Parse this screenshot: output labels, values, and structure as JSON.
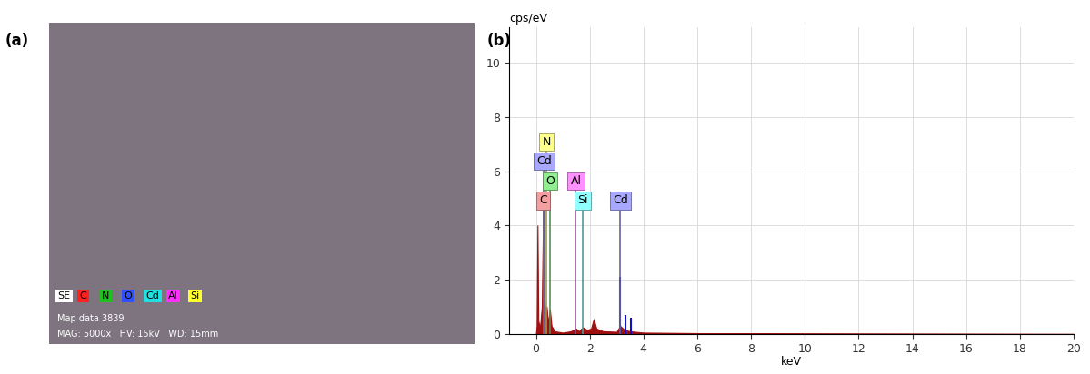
{
  "map_image": {
    "label": "(a)",
    "legend": [
      {
        "name": "SE",
        "color": "#ffffff"
      },
      {
        "name": "C",
        "color": "#ff2020"
      },
      {
        "name": "N",
        "color": "#20c020"
      },
      {
        "name": "O",
        "color": "#3050ff"
      },
      {
        "name": "Cd",
        "color": "#20e0e0"
      },
      {
        "name": "Al",
        "color": "#ff30ff"
      },
      {
        "name": "Si",
        "color": "#ffff30"
      }
    ],
    "info": [
      "Map data 3839",
      "MAG: 5000x   HV: 15kV   WD: 15mm"
    ]
  },
  "chart_data": {
    "type": "area",
    "label": "(b)",
    "y_label": "cps/eV",
    "x_label": "keV",
    "x": [
      0.0,
      0.03,
      0.06,
      0.09,
      0.15,
      0.22,
      0.27,
      0.32,
      0.37,
      0.4,
      0.45,
      0.52,
      0.58,
      0.7,
      1.0,
      1.3,
      1.49,
      1.6,
      1.74,
      1.9,
      2.05,
      2.15,
      2.25,
      2.5,
      3.0,
      3.13,
      3.3,
      3.5,
      4.0,
      6.0,
      10.0,
      20.0
    ],
    "values": [
      0.0,
      0.3,
      4.0,
      0.5,
      0.2,
      1.0,
      4.6,
      1.2,
      0.8,
      1.0,
      0.4,
      0.9,
      0.3,
      0.1,
      0.05,
      0.1,
      0.2,
      0.1,
      0.25,
      0.15,
      0.2,
      0.55,
      0.2,
      0.1,
      0.08,
      0.3,
      0.15,
      0.1,
      0.05,
      0.03,
      0.02,
      0.0
    ],
    "color": "#a01010",
    "peaks": {
      "x": [
        3.13,
        3.32,
        3.53
      ],
      "values": [
        2.1,
        0.7,
        0.6
      ],
      "color": "#1010cc"
    },
    "markers": [
      {
        "label": "C",
        "energy": 0.277,
        "color": "#f4a0a0"
      },
      {
        "label": "O",
        "energy": 0.525,
        "color": "#90ee90"
      },
      {
        "label": "Cd",
        "energy": 0.3,
        "color": "#a8a8ff"
      },
      {
        "label": "N",
        "energy": 0.392,
        "color": "#ffff90"
      },
      {
        "label": "Si",
        "energy": 1.74,
        "color": "#90ffff"
      },
      {
        "label": "Al",
        "energy": 1.486,
        "color": "#ff90ff"
      },
      {
        "label": "Cd",
        "energy": 3.133,
        "color": "#a8a8ff"
      }
    ],
    "xlim": [
      -1,
      20
    ],
    "ylim": [
      0,
      11.3
    ],
    "xticks": [
      0,
      2,
      4,
      6,
      8,
      10,
      12,
      14,
      16,
      18,
      20
    ],
    "yticks": [
      0,
      2,
      4,
      6,
      8,
      10
    ],
    "grid": true
  }
}
